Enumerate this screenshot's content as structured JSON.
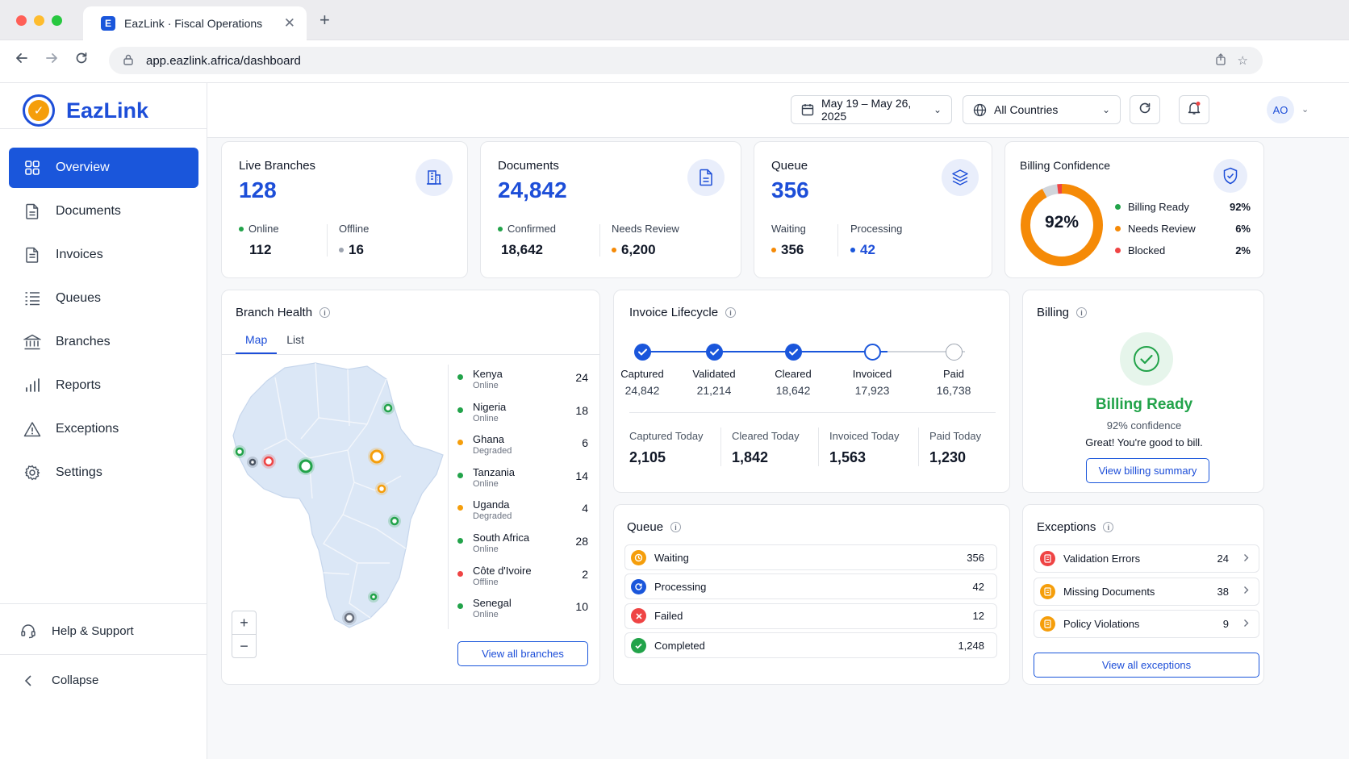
{
  "browser": {
    "tab_title": "EazLink · Fiscal Operations",
    "favicon_letter": "E",
    "url": "app.eazlink.africa/dashboard"
  },
  "sidebar": {
    "brand": "EazLink",
    "items": [
      {
        "label": "Overview",
        "icon": "grid-icon",
        "active": true
      },
      {
        "label": "Documents",
        "icon": "document-icon"
      },
      {
        "label": "Invoices",
        "icon": "invoice-icon"
      },
      {
        "label": "Queues",
        "icon": "queue-list-icon"
      },
      {
        "label": "Branches",
        "icon": "bank-icon"
      },
      {
        "label": "Reports",
        "icon": "bar-chart-icon"
      },
      {
        "label": "Exceptions",
        "icon": "warning-icon"
      },
      {
        "label": "Settings",
        "icon": "gear-icon"
      }
    ],
    "help": "Help & Support",
    "collapse": "Collapse"
  },
  "topbar": {
    "date_range": "May 19 – May 26, 2025",
    "country": "All Countries",
    "avatar_initials": "AO"
  },
  "kpi": {
    "live_branches": {
      "title": "Live Branches",
      "value": "128",
      "online_label": "Online",
      "online": "112",
      "offline_label": "Offline",
      "offline": "16"
    },
    "documents": {
      "title": "Documents",
      "value": "24,842",
      "confirmed_label": "Confirmed",
      "confirmed": "18,642",
      "review_label": "Needs Review",
      "review": "6,200"
    },
    "queue": {
      "title": "Queue",
      "value": "356",
      "waiting_label": "Waiting",
      "waiting": "356",
      "processing_label": "Processing",
      "processing": "42"
    },
    "billing_confidence": {
      "title": "Billing Confidence",
      "center": "92%",
      "legend": [
        {
          "label": "Billing Ready",
          "value": "92%",
          "color": "#f58a07",
          "fraction": 0.92
        },
        {
          "label": "Needs Review",
          "value": "6%",
          "color": "#d1d5db",
          "fraction": 0.06
        },
        {
          "label": "Blocked",
          "value": "2%",
          "color": "#ef4444",
          "fraction": 0.02
        }
      ]
    }
  },
  "branch_health": {
    "title": "Branch Health",
    "tabs": [
      "Map",
      "List"
    ],
    "branches": [
      {
        "name": "Kenya",
        "status": "Online",
        "count": "24",
        "color": "#22a34a"
      },
      {
        "name": "Nigeria",
        "status": "Online",
        "count": "18",
        "color": "#22a34a"
      },
      {
        "name": "Ghana",
        "status": "Degraded",
        "count": "6",
        "color": "#f59e0b"
      },
      {
        "name": "Tanzania",
        "status": "Online",
        "count": "14",
        "color": "#22a34a"
      },
      {
        "name": "Uganda",
        "status": "Degraded",
        "count": "4",
        "color": "#f59e0b"
      },
      {
        "name": "South Africa",
        "status": "Online",
        "count": "28",
        "color": "#22a34a"
      },
      {
        "name": "Côte d'Ivoire",
        "status": "Offline",
        "count": "2",
        "color": "#ef4444"
      },
      {
        "name": "Senegal",
        "status": "Online",
        "count": "10",
        "color": "#22a34a"
      }
    ],
    "zoom_in": "+",
    "zoom_out": "−",
    "view_all": "View all branches"
  },
  "invoice_lifecycle": {
    "title": "Invoice Lifecycle",
    "steps": [
      {
        "label": "Captured",
        "value": "24,842",
        "state": "done"
      },
      {
        "label": "Validated",
        "value": "21,214",
        "state": "done"
      },
      {
        "label": "Cleared",
        "value": "18,642",
        "state": "done"
      },
      {
        "label": "Invoiced",
        "value": "17,923",
        "state": "current"
      },
      {
        "label": "Paid",
        "value": "16,738",
        "state": "pending"
      }
    ],
    "today": [
      {
        "label": "Captured Today",
        "value": "2,105"
      },
      {
        "label": "Cleared Today",
        "value": "1,842"
      },
      {
        "label": "Invoiced Today",
        "value": "1,563"
      },
      {
        "label": "Paid Today",
        "value": "1,230"
      }
    ]
  },
  "billing": {
    "title": "Billing",
    "status": "Billing Ready",
    "confidence": "92% confidence",
    "message": "Great! You're good to bill.",
    "button": "View billing summary"
  },
  "queue_panel": {
    "title": "Queue",
    "rows": [
      {
        "label": "Waiting",
        "value": "356",
        "color": "#f59e0b",
        "icon": "clock-icon"
      },
      {
        "label": "Processing",
        "value": "42",
        "color": "#1a56db",
        "icon": "sync-icon"
      },
      {
        "label": "Failed",
        "value": "12",
        "color": "#ef4444",
        "icon": "x-icon"
      },
      {
        "label": "Completed",
        "value": "1,248",
        "color": "#22a34a",
        "icon": "check-icon"
      }
    ]
  },
  "exceptions": {
    "title": "Exceptions",
    "rows": [
      {
        "label": "Validation Errors",
        "value": "24",
        "color": "#ef4444"
      },
      {
        "label": "Missing Documents",
        "value": "38",
        "color": "#f59e0b"
      },
      {
        "label": "Policy Violations",
        "value": "9",
        "color": "#f59e0b"
      }
    ],
    "button": "View all exceptions"
  }
}
